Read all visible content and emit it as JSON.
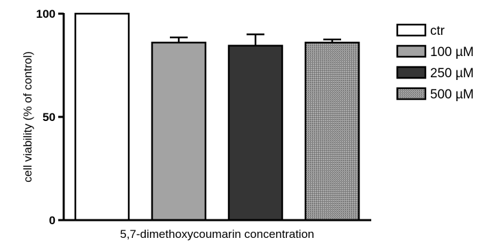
{
  "chart_data": {
    "type": "bar",
    "title": "",
    "xlabel": "5,7-dimethoxycoumarin concentration",
    "ylabel": "cell viability (% of control)",
    "ylim": [
      0,
      100
    ],
    "yticks": [
      0,
      50,
      100
    ],
    "categories": [
      "ctr",
      "100 µM",
      "250 µM",
      "500 µM"
    ],
    "values": [
      100,
      86,
      84.5,
      86
    ],
    "errors": [
      0,
      2.5,
      5.5,
      1.5
    ],
    "series": [
      {
        "name": "ctr",
        "value": 100,
        "error": 0,
        "fill": "#ffffff"
      },
      {
        "name": "100 µM",
        "value": 86,
        "error": 2.5,
        "fill": "#a3a3a3"
      },
      {
        "name": "250 µM",
        "value": 84.5,
        "error": 5.5,
        "fill": "#353535"
      },
      {
        "name": "500 µM",
        "value": 86,
        "error": 1.5,
        "fill": "#8c8c8c",
        "pattern": "stipple"
      }
    ],
    "legend_position": "right",
    "grid": false
  }
}
